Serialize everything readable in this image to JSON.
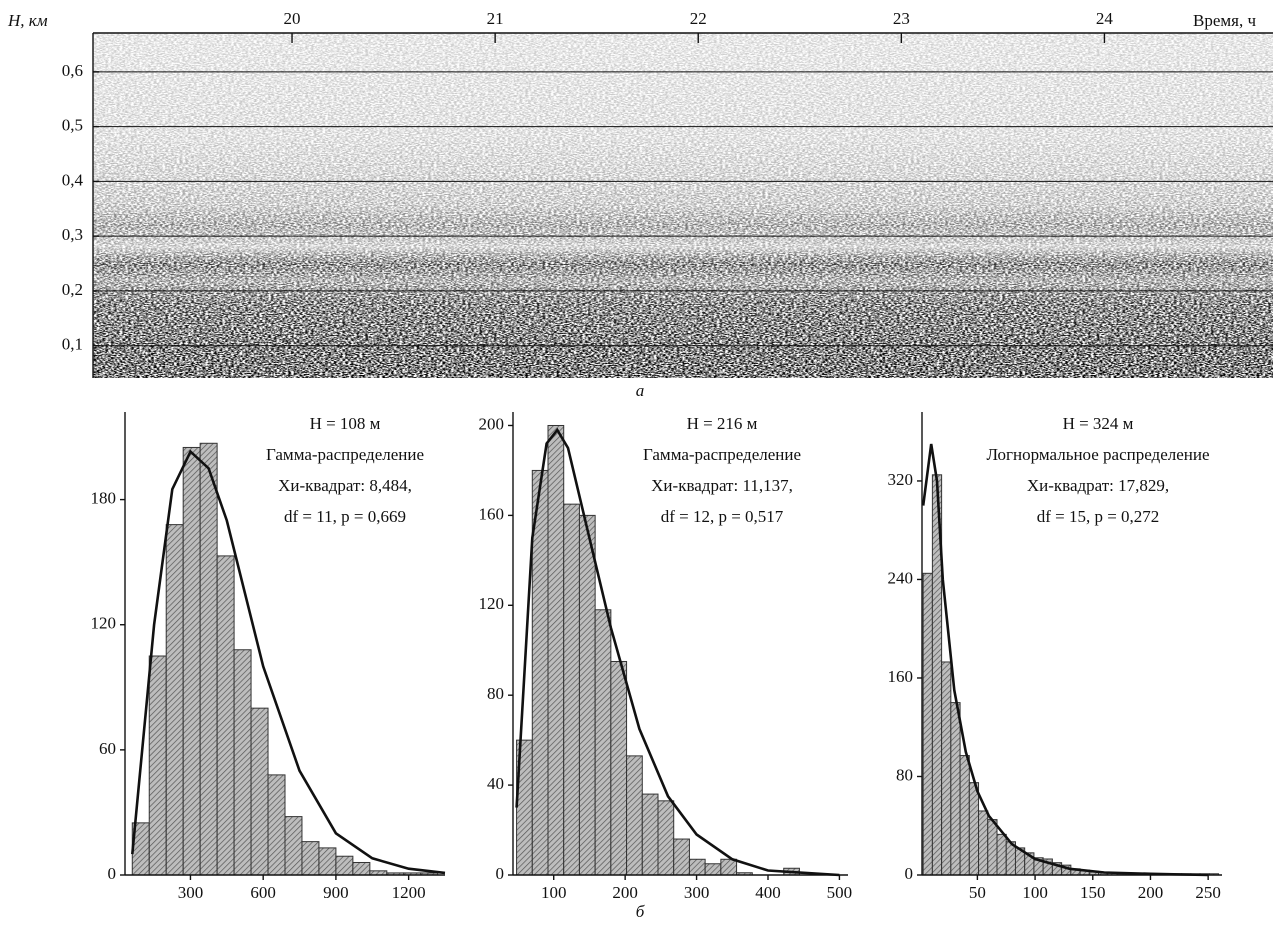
{
  "chart_data": [
    {
      "type": "echogram",
      "ylabel": "H, км",
      "xlabel": "Время, ч",
      "caption": "а",
      "xlim": [
        19.02,
        24.83
      ],
      "xticks": [
        20,
        21,
        22,
        23,
        24
      ],
      "ylim": [
        0.041,
        0.671
      ],
      "yticks": [
        {
          "value": 0.1,
          "label": "0,1"
        },
        {
          "value": 0.2,
          "label": "0,2"
        },
        {
          "value": 0.3,
          "label": "0,3"
        },
        {
          "value": 0.4,
          "label": "0,4"
        },
        {
          "value": 0.5,
          "label": "0,5"
        },
        {
          "value": 0.6,
          "label": "0,6"
        }
      ],
      "grid": true
    },
    {
      "type": "histogram",
      "annotations": [
        "H = 108 м",
        "Гамма-распределение",
        "Хи-квадрат: 8,484,",
        "df = 11,  p = 0,669"
      ],
      "bins": [
        60,
        130,
        200,
        270,
        340,
        410,
        480,
        550,
        620,
        690,
        760,
        830,
        900,
        970,
        1040,
        1110,
        1180,
        1250,
        1320
      ],
      "values": [
        25,
        105,
        168,
        205,
        207,
        153,
        108,
        80,
        48,
        28,
        16,
        13,
        9,
        6,
        2,
        1,
        1,
        1
      ],
      "fit": {
        "x": [
          60,
          150,
          225,
          300,
          375,
          450,
          525,
          600,
          750,
          900,
          1050,
          1200,
          1350
        ],
        "y": [
          10,
          120,
          185,
          203,
          195,
          170,
          135,
          100,
          50,
          20,
          8,
          3,
          1
        ]
      },
      "color": "#9a9a9a",
      "line_color": "#111111",
      "xlim": [
        30,
        1350
      ],
      "xticks": [
        300,
        600,
        900,
        1200
      ],
      "ylim": [
        0,
        222
      ],
      "yticks": [
        0,
        60,
        120,
        180
      ]
    },
    {
      "type": "histogram",
      "annotations": [
        "H = 216 м",
        "Гамма-распределение",
        "Хи-квадрат: 11,137,",
        "df = 12,  p = 0,517"
      ],
      "caption": "б",
      "bins": [
        48,
        70,
        92,
        114,
        136,
        158,
        180,
        202,
        224,
        246,
        268,
        290,
        312,
        334,
        356,
        378,
        400,
        422,
        444,
        466,
        488,
        510
      ],
      "values": [
        60,
        180,
        200,
        165,
        160,
        118,
        95,
        53,
        36,
        33,
        16,
        7,
        5,
        7,
        1,
        0,
        0,
        3,
        0,
        0,
        0
      ],
      "fit": {
        "x": [
          48,
          70,
          90,
          105,
          120,
          150,
          180,
          220,
          260,
          300,
          350,
          400,
          450,
          500
        ],
        "y": [
          30,
          150,
          192,
          198,
          190,
          150,
          110,
          65,
          35,
          18,
          7,
          2,
          1,
          0
        ]
      },
      "color": "#9a9a9a",
      "line_color": "#111111",
      "xlim": [
        43,
        512
      ],
      "xticks": [
        100,
        200,
        300,
        400,
        500
      ],
      "ylim": [
        0,
        206
      ],
      "yticks": [
        0,
        40,
        80,
        120,
        160,
        200
      ]
    },
    {
      "type": "histogram",
      "annotations": [
        "H = 324 м",
        "Логнормальное распределение",
        "Хи-квадрат: 17,829,",
        "df = 15,  p = 0,272"
      ],
      "bins": [
        3,
        11,
        19,
        27,
        35,
        43,
        51,
        59,
        67,
        75,
        83,
        91,
        99,
        107,
        115,
        123,
        131,
        139,
        147,
        155,
        163,
        171,
        179,
        187,
        195,
        203,
        211,
        219,
        227,
        235,
        243,
        251,
        259
      ],
      "values": [
        245,
        325,
        173,
        140,
        97,
        75,
        52,
        45,
        33,
        27,
        22,
        18,
        14,
        13,
        10,
        8,
        5,
        4,
        3,
        2,
        2,
        1,
        1,
        1,
        1,
        1,
        1,
        1,
        1,
        1,
        1,
        1
      ],
      "fit": {
        "x": [
          3,
          10,
          15,
          20,
          30,
          40,
          50,
          60,
          80,
          100,
          130,
          160,
          200,
          250
        ],
        "y": [
          300,
          350,
          320,
          240,
          150,
          100,
          68,
          48,
          25,
          13,
          5,
          2,
          1,
          0
        ]
      },
      "color": "#9a9a9a",
      "line_color": "#111111",
      "xlim": [
        2,
        262
      ],
      "xticks": [
        50,
        100,
        150,
        200,
        250
      ],
      "ylim": [
        0,
        376
      ],
      "yticks": [
        0,
        80,
        160,
        240,
        320
      ]
    }
  ]
}
